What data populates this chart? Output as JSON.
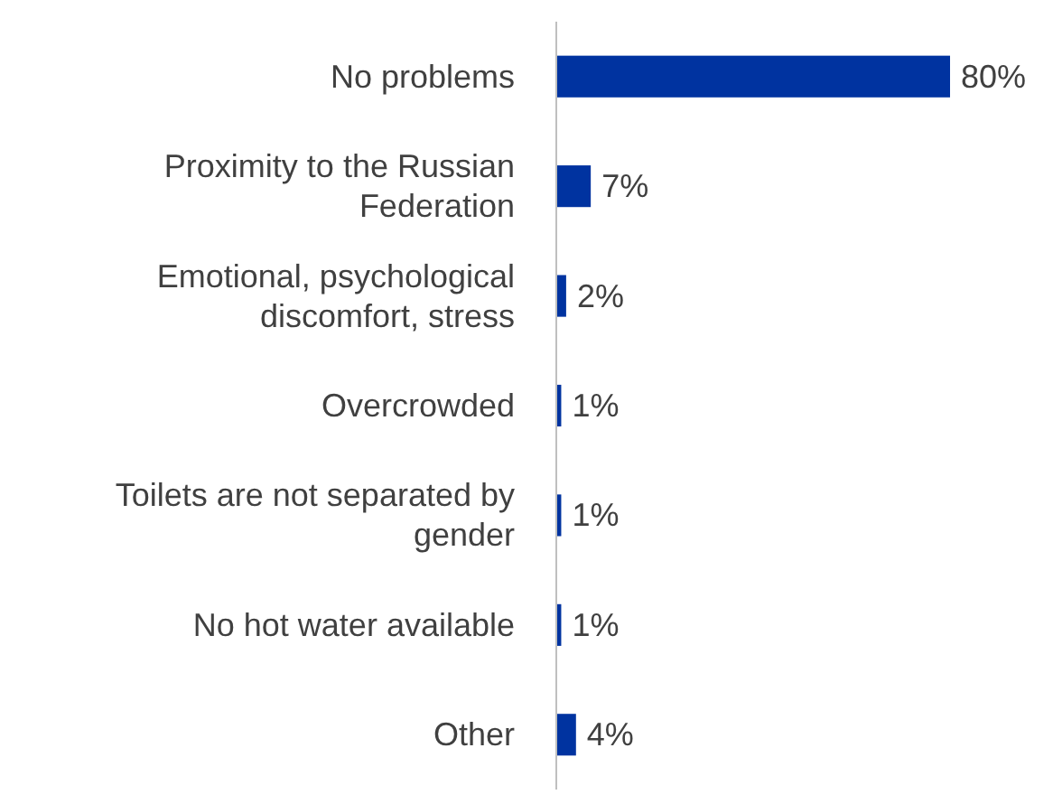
{
  "chart_data": {
    "type": "bar",
    "orientation": "horizontal",
    "categories": [
      "No problems",
      "Proximity to the Russian Federation",
      "Emotional, psychological discomfort, stress",
      "Overcrowded",
      "Toilets are not separated by gender",
      "No hot water available",
      "Other"
    ],
    "values": [
      80,
      7,
      2,
      1,
      1,
      1,
      4
    ],
    "value_labels": [
      "80%",
      "7%",
      "2%",
      "1%",
      "1%",
      "1%",
      "4%"
    ],
    "color": "#0033a0"
  }
}
